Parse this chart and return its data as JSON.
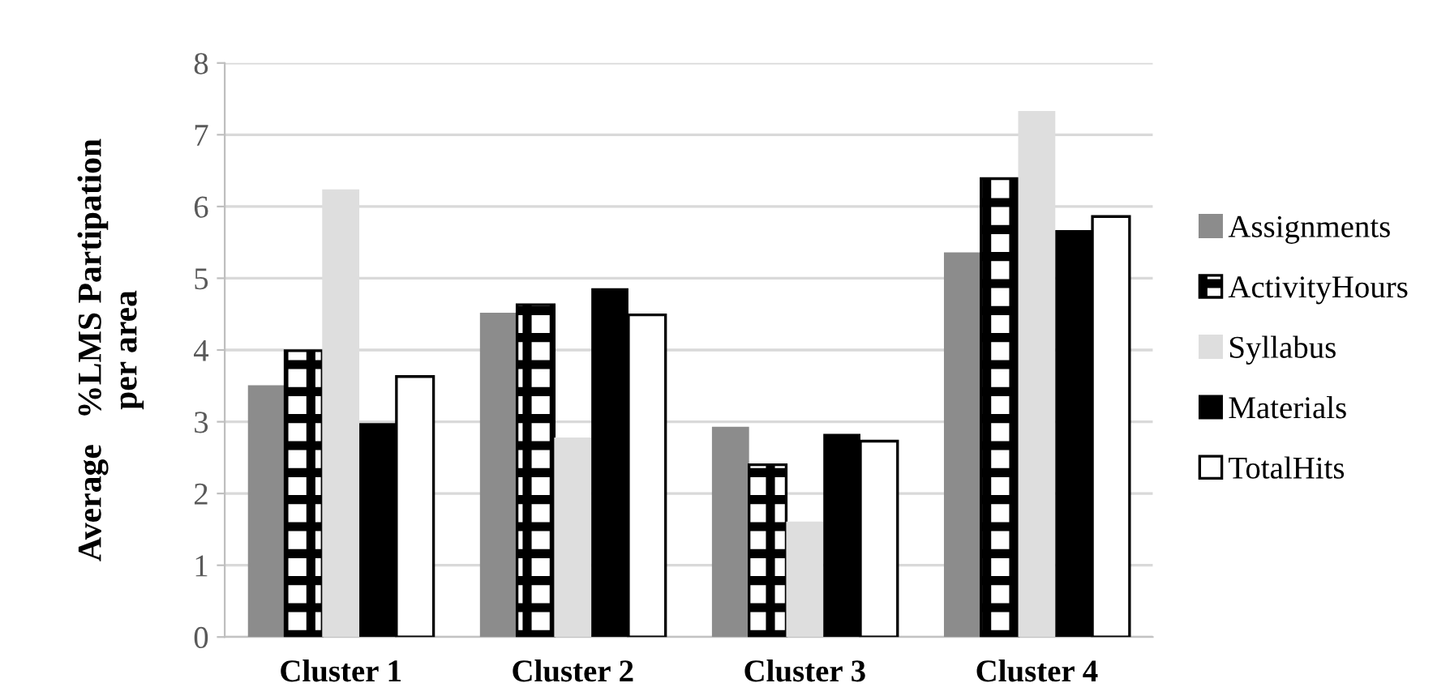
{
  "chart_data": {
    "type": "bar",
    "ylabel": "Average   %LMS Partipation\nper area",
    "categories": [
      "Cluster 1",
      "Cluster 2",
      "Cluster 3",
      "Cluster 4"
    ],
    "series": [
      {
        "name": "Assignments",
        "color": "#8c8c8c",
        "values": [
          3.51,
          4.52,
          2.93,
          5.36
        ]
      },
      {
        "name": "ActivityHours",
        "color": "#000000",
        "values": [
          3.99,
          4.63,
          2.4,
          6.39
        ]
      },
      {
        "name": "Syllabus",
        "color": "#dedede",
        "values": [
          6.24,
          2.78,
          1.61,
          7.33
        ]
      },
      {
        "name": "Materials",
        "color": "#000000",
        "values": [
          2.98,
          4.86,
          2.83,
          5.67
        ]
      },
      {
        "name": "TotalHits",
        "color": "#ffffff",
        "values": [
          3.63,
          4.49,
          2.73,
          5.86
        ]
      }
    ],
    "ylim": [
      0,
      8
    ],
    "yticks": [
      0,
      1,
      2,
      3,
      4,
      5,
      6,
      7,
      8
    ],
    "grid": "y",
    "legend": "right"
  }
}
